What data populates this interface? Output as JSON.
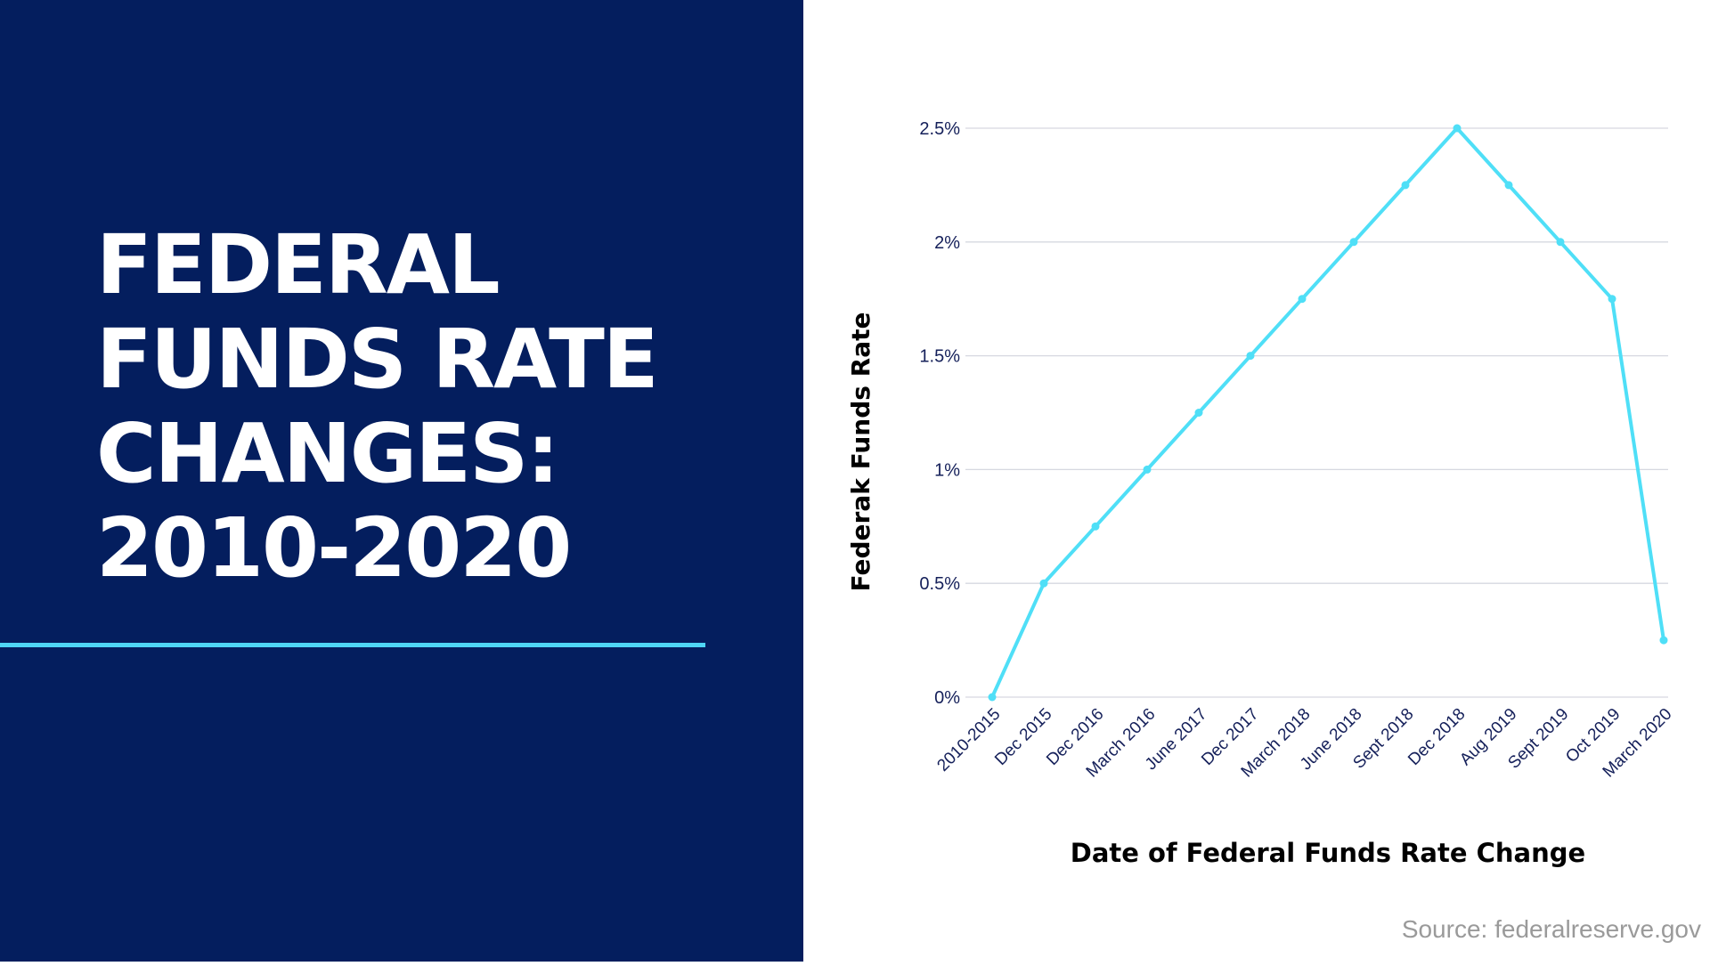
{
  "title": "FEDERAL\nFUNDS RATE\nCHANGES:\n2010-2020",
  "source": "Source: federalreserve.gov",
  "colors": {
    "panel": "#041e5e",
    "accent": "#4fd6f5",
    "line": "#4fdff7",
    "grid": "#d6d8e0",
    "tick_text": "#15205a"
  },
  "chart_data": {
    "type": "line",
    "title": "",
    "xlabel": "Date of Federal Funds Rate Change",
    "ylabel": "Federak Funds Rate",
    "categories": [
      "2010-2015",
      "Dec 2015",
      "Dec 2016",
      "March 2016",
      "June 2017",
      "Dec 2017",
      "March 2018",
      "June 2018",
      "Sept 2018",
      "Dec 2018",
      "Aug 2019",
      "Sept 2019",
      "Oct 2019",
      "March 2020"
    ],
    "values": [
      0,
      0.5,
      0.75,
      1,
      1.25,
      1.5,
      1.75,
      2,
      2.25,
      2.5,
      2.25,
      2,
      1.75,
      0.25
    ],
    "ylim": [
      0,
      2.5
    ],
    "yticks": [
      0,
      0.5,
      1,
      1.5,
      2,
      2.5
    ],
    "ytick_labels": [
      "0%",
      "0.5%",
      "1%",
      "1.5%",
      "2%",
      "2.5%"
    ],
    "grid": true,
    "legend": false
  }
}
